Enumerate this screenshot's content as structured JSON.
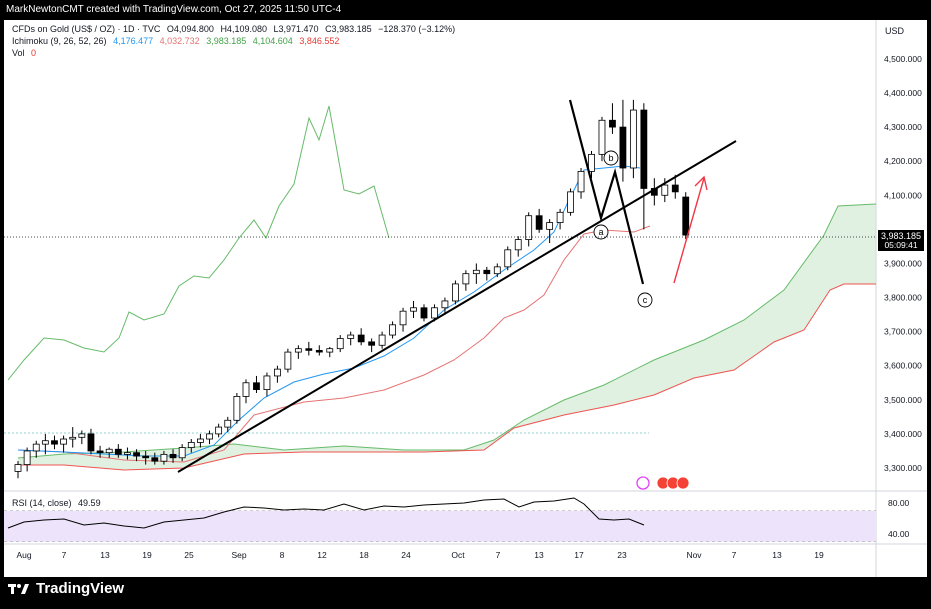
{
  "credit": "MarkNewtonCMT created with TradingView.com, Oct 27, 2025 11:50 UTC-4",
  "footer_brand": "TradingView",
  "legend": {
    "symbol": "CFDs on Gold (US$ / OZ) · 1D · TVC",
    "open": "O4,094.800",
    "high": "H4,109.080",
    "low": "L3,971.470",
    "close": "C3,983.185",
    "change": "−128.370 (−3.12%)",
    "ichimoku_label": "Ichimoku (9, 26, 52, 26)",
    "ichi_v1": "4,176.477",
    "ichi_v2": "4,032.732",
    "ichi_v3": "3,983.185",
    "ichi_v4": "4,104.604",
    "ichi_v5": "3,846.552",
    "vol_label": "Vol",
    "vol_value": "0",
    "rsi_label": "RSI (14, close)",
    "rsi_value": "49.59"
  },
  "colors": {
    "up": "#ffffff",
    "down": "#000000",
    "tenkan": "#2196f3",
    "kijun": "#e57373",
    "chikou": "#66bb6a",
    "span_a": "#66bb6a",
    "span_b": "#ef5350",
    "cloud": "#c8e6c9",
    "rsi": "#7e57c2",
    "rsi_band": "#ede4fb"
  },
  "price_axis": {
    "currency": "USD",
    "ticks": [
      "4,500.000",
      "4,400.000",
      "4,300.000",
      "4,200.000",
      "4,100.000",
      "4,000.000",
      "3,900.000",
      "3,800.000",
      "3,700.000",
      "3,600.000",
      "3,500.000",
      "3,400.000",
      "3,300.000"
    ],
    "current_price": "3,983.185",
    "countdown": "05:09:41"
  },
  "rsi_axis": {
    "ticks": [
      "80.00",
      "40.00"
    ]
  },
  "time_axis": {
    "ticks": [
      "Aug",
      "7",
      "13",
      "19",
      "25",
      "Sep",
      "8",
      "12",
      "18",
      "24",
      "Oct",
      "7",
      "13",
      "17",
      "23",
      "Nov",
      "7",
      "13",
      "19"
    ]
  },
  "annotations": {
    "a": "a",
    "b": "b",
    "c": "c"
  },
  "chart_data": {
    "type": "candlestick",
    "x_unit": "trading day index (1 = Aug 1, 2025)",
    "ylim": [
      3250,
      4560
    ],
    "candles": [
      [
        3290,
        3320,
        3270,
        3310
      ],
      [
        3310,
        3360,
        3290,
        3350
      ],
      [
        3350,
        3380,
        3330,
        3370
      ],
      [
        3370,
        3400,
        3340,
        3380
      ],
      [
        3380,
        3395,
        3355,
        3370
      ],
      [
        3370,
        3395,
        3345,
        3385
      ],
      [
        3385,
        3420,
        3360,
        3390
      ],
      [
        3390,
        3410,
        3370,
        3400
      ],
      [
        3400,
        3415,
        3340,
        3350
      ],
      [
        3350,
        3365,
        3330,
        3345
      ],
      [
        3345,
        3360,
        3330,
        3355
      ],
      [
        3355,
        3370,
        3330,
        3340
      ],
      [
        3340,
        3360,
        3325,
        3345
      ],
      [
        3345,
        3355,
        3320,
        3335
      ],
      [
        3335,
        3350,
        3310,
        3330
      ],
      [
        3330,
        3345,
        3310,
        3320
      ],
      [
        3320,
        3350,
        3310,
        3340
      ],
      [
        3340,
        3355,
        3315,
        3330
      ],
      [
        3330,
        3370,
        3320,
        3360
      ],
      [
        3360,
        3385,
        3345,
        3375
      ],
      [
        3375,
        3400,
        3360,
        3385
      ],
      [
        3385,
        3410,
        3370,
        3400
      ],
      [
        3400,
        3430,
        3390,
        3420
      ],
      [
        3420,
        3450,
        3405,
        3440
      ],
      [
        3440,
        3520,
        3430,
        3510
      ],
      [
        3510,
        3560,
        3490,
        3550
      ],
      [
        3550,
        3570,
        3520,
        3530
      ],
      [
        3530,
        3580,
        3510,
        3570
      ],
      [
        3570,
        3600,
        3550,
        3590
      ],
      [
        3590,
        3650,
        3580,
        3640
      ],
      [
        3640,
        3660,
        3620,
        3650
      ],
      [
        3650,
        3670,
        3630,
        3645
      ],
      [
        3645,
        3660,
        3630,
        3640
      ],
      [
        3640,
        3655,
        3625,
        3650
      ],
      [
        3650,
        3690,
        3640,
        3680
      ],
      [
        3680,
        3700,
        3660,
        3690
      ],
      [
        3690,
        3710,
        3660,
        3670
      ],
      [
        3670,
        3680,
        3640,
        3660
      ],
      [
        3660,
        3700,
        3650,
        3690
      ],
      [
        3690,
        3730,
        3680,
        3720
      ],
      [
        3720,
        3770,
        3700,
        3760
      ],
      [
        3760,
        3790,
        3740,
        3770
      ],
      [
        3770,
        3780,
        3730,
        3740
      ],
      [
        3740,
        3780,
        3730,
        3770
      ],
      [
        3770,
        3800,
        3750,
        3790
      ],
      [
        3790,
        3850,
        3780,
        3840
      ],
      [
        3840,
        3880,
        3820,
        3870
      ],
      [
        3870,
        3900,
        3840,
        3880
      ],
      [
        3880,
        3890,
        3850,
        3870
      ],
      [
        3870,
        3900,
        3860,
        3890
      ],
      [
        3890,
        3950,
        3880,
        3940
      ],
      [
        3940,
        3980,
        3920,
        3970
      ],
      [
        3970,
        4050,
        3950,
        4040
      ],
      [
        4040,
        4060,
        3990,
        4000
      ],
      [
        4000,
        4030,
        3960,
        4020
      ],
      [
        4020,
        4060,
        4000,
        4050
      ],
      [
        4050,
        4120,
        4040,
        4110
      ],
      [
        4110,
        4180,
        4090,
        4170
      ],
      [
        4170,
        4230,
        4150,
        4220
      ],
      [
        4220,
        4330,
        4200,
        4320
      ],
      [
        4320,
        4370,
        4280,
        4300
      ],
      [
        4300,
        4380,
        4140,
        4180
      ],
      [
        4180,
        4380,
        4150,
        4350
      ],
      [
        4350,
        4370,
        4000,
        4120
      ],
      [
        4120,
        4150,
        4070,
        4100
      ],
      [
        4100,
        4150,
        4080,
        4130
      ],
      [
        4130,
        4160,
        4090,
        4110
      ],
      [
        4094.8,
        4109.08,
        3971.47,
        3983.185
      ]
    ],
    "current_price": 3983.185
  }
}
